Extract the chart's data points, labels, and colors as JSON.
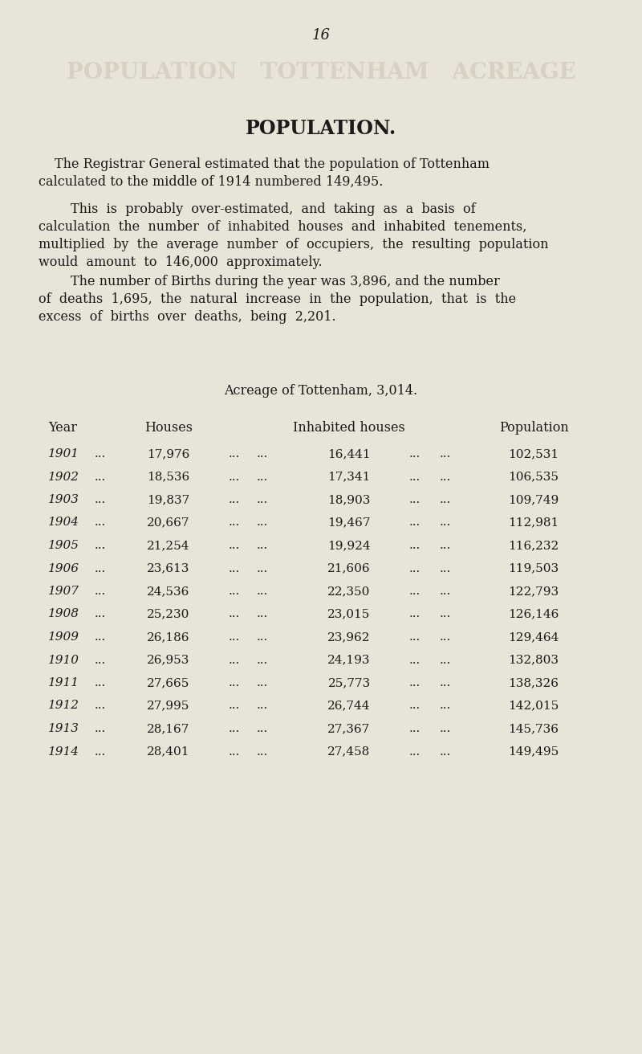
{
  "page_number": "16",
  "bg_color": "#e8e4d8",
  "title": "POPULATION.",
  "para1_lines": [
    "The Registrar General estimated that the population of Tottenham",
    "calculated to the middle of 1914 numbered 149,495."
  ],
  "para2_lines": [
    "This  is  probably  over-estimated,  and  taking  as  a  basis  of",
    "calculation  the  number  of  inhabited  houses  and  inhabited  tenements,",
    "multiplied  by  the  average  number  of  occupiers,  the  resulting  population",
    "would  amount  to  146,000  approximately."
  ],
  "para3_lines": [
    "The number of Births during the year was 3,896, and the number",
    "of  deaths  1,695,  the  natural  increase  in  the  population,  that  is  the",
    "excess  of  births  over  deaths,  being  2,201."
  ],
  "acreage_label": "Acreage of Tottenham, 3,014.",
  "col_headers": [
    "Year",
    "Houses",
    "Inhabited houses",
    "Population"
  ],
  "table_data": [
    [
      "1901",
      "17,976",
      "16,441",
      "102,531"
    ],
    [
      "1902",
      "18,536",
      "17,341",
      "106,535"
    ],
    [
      "1903",
      "19,837",
      "18,903",
      "109,749"
    ],
    [
      "1904",
      "20,667",
      "19,467",
      "112,981"
    ],
    [
      "1905",
      "21,254",
      "19,924",
      "116,232"
    ],
    [
      "1906",
      "23,613",
      "21,606",
      "119,503"
    ],
    [
      "1907",
      "24,536",
      "22,350",
      "122,793"
    ],
    [
      "1908",
      "25,230",
      "23,015",
      "126,146"
    ],
    [
      "1909",
      "26,186",
      "23,962",
      "129,464"
    ],
    [
      "1910",
      "26,953",
      "24,193",
      "132,803"
    ],
    [
      "1911",
      "27,665",
      "25,773",
      "138,326"
    ],
    [
      "1912",
      "27,995",
      "26,744",
      "142,015"
    ],
    [
      "1913",
      "28,167",
      "27,367",
      "145,736"
    ],
    [
      "1914",
      "28,401",
      "27,458",
      "149,495"
    ]
  ],
  "text_color": "#1a1a1a",
  "faint_text_color": "#c5bfb0",
  "watermark_lines": [
    "POPULATION  TOTTENHAM  ACREAGE"
  ]
}
